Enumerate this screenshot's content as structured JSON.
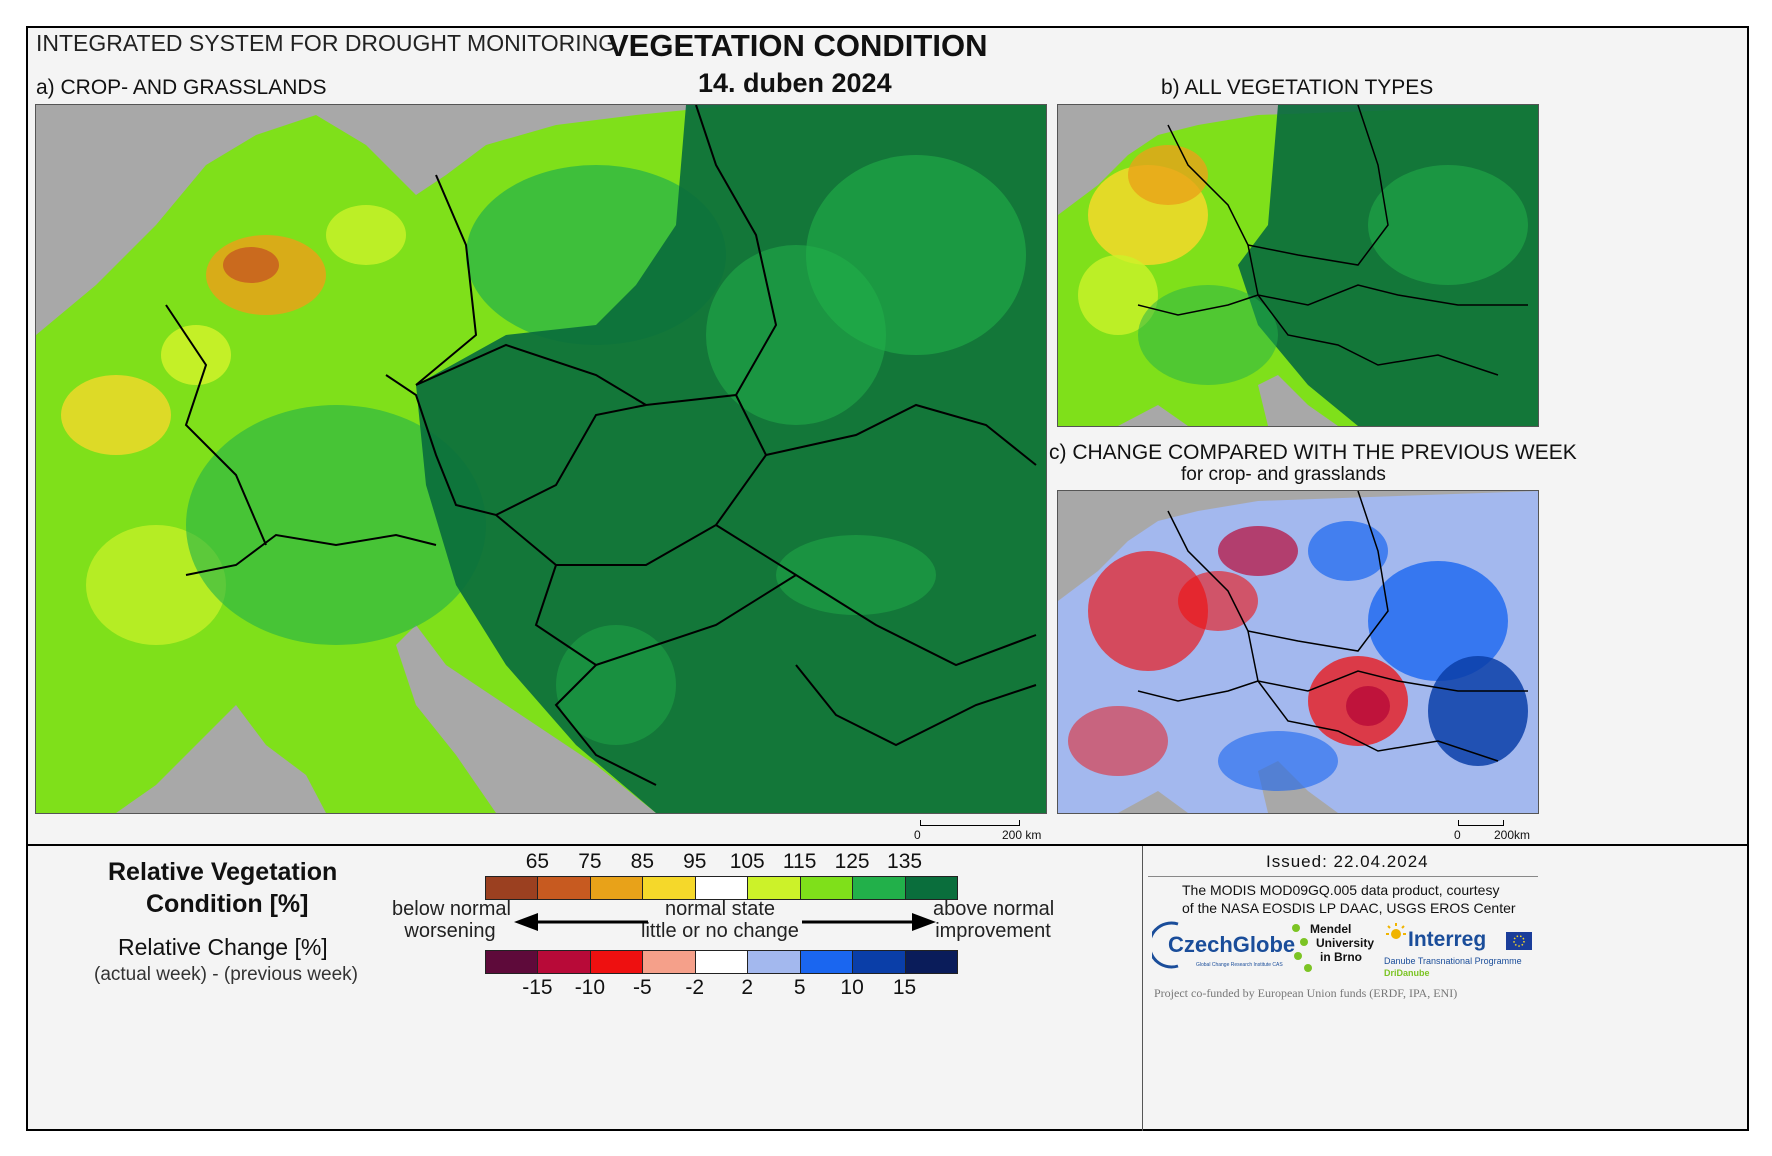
{
  "header": {
    "system": "INTEGRATED SYSTEM FOR DROUGHT MONITORING",
    "title": "VEGETATION CONDITION",
    "date": "14. duben 2024"
  },
  "panels": {
    "a": "a) CROP- AND GRASSLANDS",
    "b": "b) ALL VEGETATION TYPES",
    "c_line1": "c) CHANGE COMPARED WITH THE PREVIOUS WEEK",
    "c_line2": "for crop- and grasslands"
  },
  "scalebars": {
    "main": {
      "zero": "0",
      "end": "200 km"
    },
    "small": {
      "zero": "0",
      "end": "200km"
    }
  },
  "legend": {
    "rvc_title_1": "Relative Vegetation",
    "rvc_title_2": "Condition [%]",
    "rc_title": "Relative Change [%]",
    "rc_subtitle": "(actual week) - (previous week)",
    "rvc_ticks": [
      "65",
      "75",
      "85",
      "95",
      "105",
      "115",
      "125",
      "135"
    ],
    "rvc_colors": [
      "#9b4020",
      "#c75a20",
      "#e8a219",
      "#f5d82a",
      "#ffffff",
      "#ccf229",
      "#7fe01a",
      "#22b04a",
      "#0a6e3c"
    ],
    "rc_ticks": [
      "-15",
      "-10",
      "-5",
      "-2",
      "2",
      "5",
      "10",
      "15"
    ],
    "rc_colors": [
      "#5e0a3a",
      "#b80a38",
      "#ee1010",
      "#f5a08a",
      "#ffffff",
      "#a3b8ee",
      "#1a66f0",
      "#0a3ea8",
      "#0a1c5a"
    ],
    "below_1": "below normal",
    "below_2": "worsening",
    "normal_1": "normal state",
    "normal_2": "little or no change",
    "above_1": "above normal",
    "above_2": "improvement"
  },
  "info": {
    "issued": "Issued: 22.04.2024",
    "credit_1": "The MODIS MOD09GQ.005 data product, courtesy",
    "credit_2": "of the NASA EOSDIS LP DAAC, USGS EROS Center",
    "funding": "Project co-funded by European Union funds (ERDF, IPA, ENI)"
  },
  "logos": {
    "czechglobe": "CzechGlobe",
    "czechglobe_sub": "Global Change Research Institute CAS",
    "mendel_1": "Mendel",
    "mendel_2": "University",
    "mendel_3": "in Brno",
    "interreg": "Interreg",
    "interreg_sub": "Danube Transnational Programme",
    "dridanube": "DriDanube"
  },
  "map_colors": {
    "sea": "#a8a8a8",
    "dark_green": "#0a6e3c",
    "green": "#22b04a",
    "light_green": "#7fe01a",
    "yellow_green": "#ccf229",
    "orange": "#e8a219",
    "brown": "#c75a20",
    "red": "#ee1010",
    "blue": "#1a66f0",
    "navy": "#0a3ea8"
  }
}
